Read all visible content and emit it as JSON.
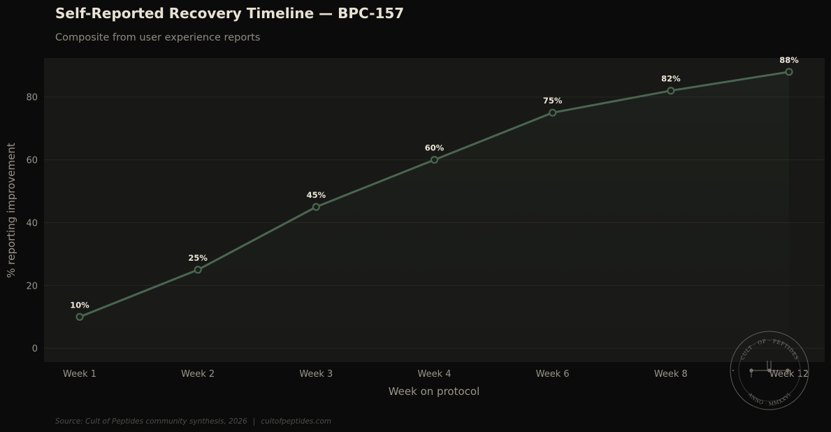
{
  "header": {
    "title": "Self-Reported Recovery Timeline — BPC-157",
    "subtitle": "Composite from user experience reports"
  },
  "footer": {
    "source": "Source: Cult of Peptides community synthesis, 2026",
    "separator": "|",
    "site": "cultofpeptides.com"
  },
  "seal": {
    "top_text": "CULT · OF · PEPTIDES",
    "bottom_text": "ANNO · MMXXVI"
  },
  "colors": {
    "background": "#0b0b0b",
    "plot_background": "#181816",
    "line": "#4a6650",
    "gridline": "#26261f",
    "text": "#9a958b",
    "label": "#ece6d8"
  },
  "chart_data": {
    "type": "line",
    "title": "Self-Reported Recovery Timeline — BPC-157",
    "subtitle": "Composite from user experience reports",
    "xlabel": "Week on protocol",
    "ylabel": "% reporting improvement",
    "categories": [
      "Week 1",
      "Week 2",
      "Week 3",
      "Week 4",
      "Week 6",
      "Week 8",
      "Week 12"
    ],
    "values": [
      10,
      25,
      45,
      60,
      75,
      82,
      88
    ],
    "value_labels": [
      "10%",
      "25%",
      "45%",
      "60%",
      "75%",
      "82%",
      "88%"
    ],
    "yticks": [
      0,
      20,
      40,
      60,
      80
    ],
    "ylim": [
      -4.4,
      92.4
    ],
    "grid": true,
    "legend": "none"
  }
}
